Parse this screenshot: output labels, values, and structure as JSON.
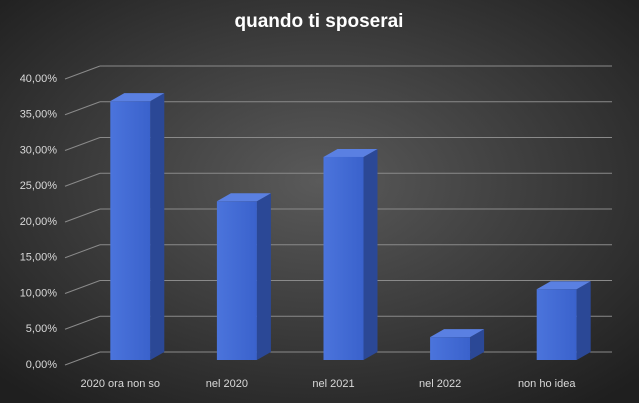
{
  "chart_data": {
    "type": "bar3d",
    "title": "quando ti sposerai",
    "categories": [
      "2020 ora non so",
      "nel 2020",
      "nel 2021",
      "nel 2022",
      "non ho idea"
    ],
    "values": [
      36.2,
      22.2,
      28.4,
      3.2,
      9.9
    ],
    "color": "#3f66d0",
    "ylim": [
      0,
      40
    ],
    "yticks": [
      {
        "value": 0,
        "label": "0,00%"
      },
      {
        "value": 5,
        "label": "5,00%"
      },
      {
        "value": 10,
        "label": "10,00%"
      },
      {
        "value": 15,
        "label": "15,00%"
      },
      {
        "value": 20,
        "label": "20,00%"
      },
      {
        "value": 25,
        "label": "25,00%"
      },
      {
        "value": 30,
        "label": "30,00%"
      },
      {
        "value": 35,
        "label": "35,00%"
      },
      {
        "value": 40,
        "label": "40,00%"
      }
    ],
    "grid": true
  }
}
